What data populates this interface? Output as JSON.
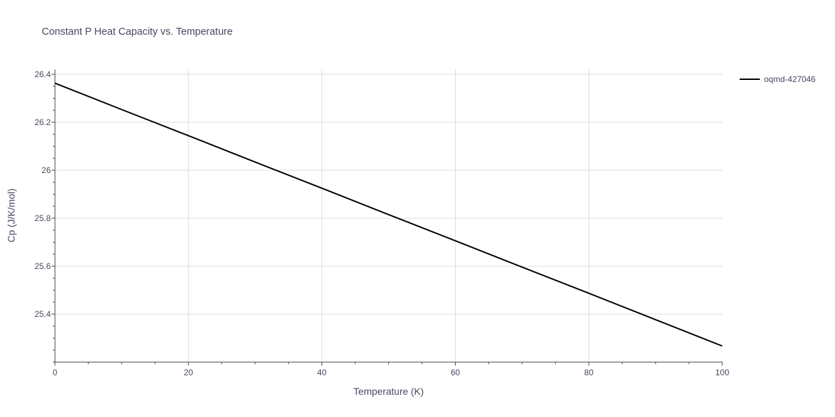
{
  "chart_data": {
    "type": "line",
    "title": "Constant P Heat Capacity vs. Temperature",
    "xlabel": "Temperature (K)",
    "ylabel": "Cp (J/K/mol)",
    "xlim": [
      0,
      100
    ],
    "ylim": [
      25.2,
      26.42
    ],
    "x_ticks": [
      0,
      20,
      40,
      60,
      80,
      100
    ],
    "x_tick_labels": [
      "0",
      "20",
      "40",
      "60",
      "80",
      "100"
    ],
    "x_minor_step": 5,
    "y_ticks": [
      25.4,
      25.6,
      25.8,
      26,
      26.2,
      26.4
    ],
    "y_tick_labels": [
      "25.4",
      "25.6",
      "25.8",
      "26",
      "26.2",
      "26.4"
    ],
    "y_minor_step": 0.05,
    "grid": true,
    "legend_position": "top-right",
    "series": [
      {
        "name": "oqmd-427046",
        "color": "#000000",
        "x": [
          0,
          10,
          20,
          30,
          40,
          50,
          60,
          70,
          80,
          90,
          100
        ],
        "y": [
          26.363,
          26.253,
          26.144,
          26.034,
          25.925,
          25.815,
          25.706,
          25.596,
          25.487,
          25.377,
          25.267
        ]
      }
    ]
  }
}
